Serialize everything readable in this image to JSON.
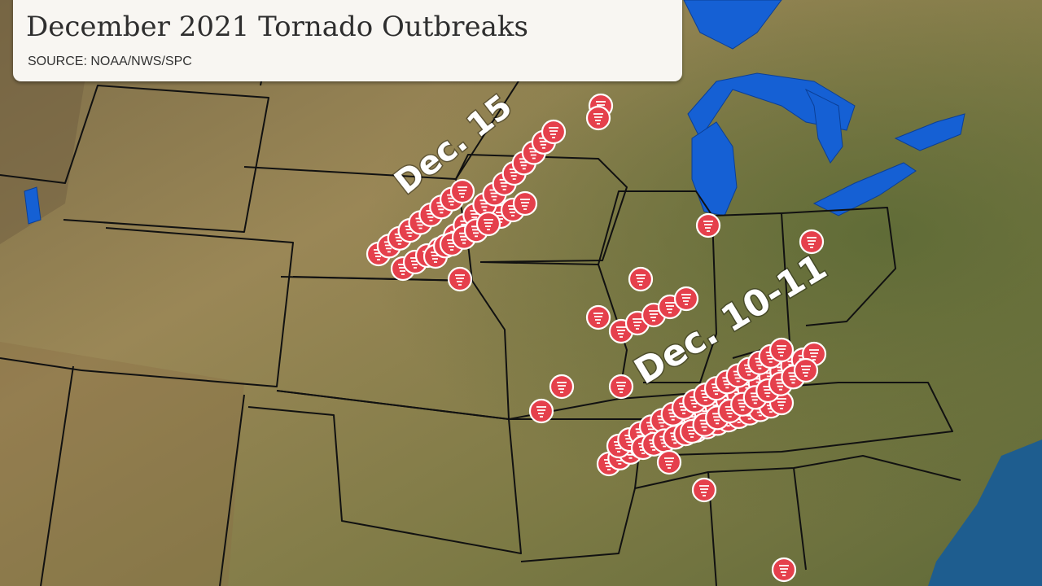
{
  "header": {
    "title": "December 2021 Tornado Outbreaks",
    "source": "SOURCE: NOAA/NWS/SPC"
  },
  "annotations": [
    "Dec. 15",
    "Dec. 10-11"
  ]
}
